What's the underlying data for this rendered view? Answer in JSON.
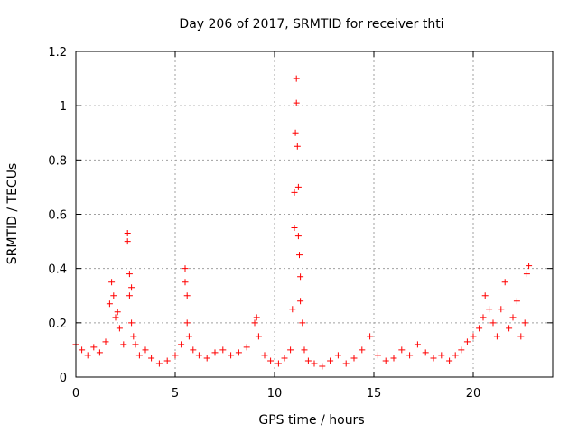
{
  "chart_data": {
    "type": "scatter",
    "title": "Day 206 of 2017, SRMTID for receiver thti",
    "xlabel": "GPS time / hours",
    "ylabel": "SRMTID / TECUs",
    "xlim": [
      0,
      24
    ],
    "ylim": [
      0,
      1.2
    ],
    "grid": true,
    "marker": "+",
    "color": "#ff0000",
    "x_ticks": [
      0,
      5,
      10,
      15,
      20
    ],
    "x_tick_labels": [
      "0",
      "5",
      "10",
      "15",
      "20"
    ],
    "y_ticks": [
      0,
      0.2,
      0.4,
      0.6,
      0.8,
      1.0,
      1.2
    ],
    "y_tick_labels": [
      "0",
      "0.2",
      "0.4",
      "0.6",
      "0.8",
      "1",
      "1.2"
    ],
    "series": [
      {
        "name": "SRMTID",
        "x": [
          0.0,
          0.3,
          0.6,
          0.9,
          1.2,
          1.5,
          1.7,
          1.8,
          1.9,
          2.0,
          2.1,
          2.2,
          2.4,
          2.6,
          2.6,
          2.7,
          2.7,
          2.8,
          2.8,
          2.9,
          3.0,
          3.2,
          3.5,
          3.8,
          4.2,
          4.6,
          5.0,
          5.3,
          5.5,
          5.5,
          5.6,
          5.6,
          5.7,
          5.9,
          6.2,
          6.6,
          7.0,
          7.4,
          7.8,
          8.2,
          8.6,
          9.0,
          9.1,
          9.2,
          9.5,
          9.8,
          10.2,
          10.5,
          10.8,
          10.9,
          11.0,
          11.0,
          11.05,
          11.1,
          11.1,
          11.15,
          11.2,
          11.2,
          11.25,
          11.3,
          11.3,
          11.4,
          11.5,
          11.7,
          12.0,
          12.4,
          12.8,
          13.2,
          13.6,
          14.0,
          14.4,
          14.8,
          15.2,
          15.6,
          16.0,
          16.4,
          16.8,
          17.2,
          17.6,
          18.0,
          18.4,
          18.8,
          19.1,
          19.4,
          19.7,
          20.0,
          20.3,
          20.5,
          20.6,
          20.8,
          21.0,
          21.2,
          21.4,
          21.6,
          21.8,
          22.0,
          22.2,
          22.4,
          22.6,
          22.7,
          22.8
        ],
        "y": [
          0.12,
          0.1,
          0.08,
          0.11,
          0.09,
          0.13,
          0.27,
          0.35,
          0.3,
          0.22,
          0.24,
          0.18,
          0.12,
          0.5,
          0.53,
          0.38,
          0.3,
          0.33,
          0.2,
          0.15,
          0.12,
          0.08,
          0.1,
          0.07,
          0.05,
          0.06,
          0.08,
          0.12,
          0.35,
          0.4,
          0.3,
          0.2,
          0.15,
          0.1,
          0.08,
          0.07,
          0.09,
          0.1,
          0.08,
          0.09,
          0.11,
          0.2,
          0.22,
          0.15,
          0.08,
          0.06,
          0.05,
          0.07,
          0.1,
          0.25,
          0.55,
          0.68,
          0.9,
          1.1,
          1.01,
          0.85,
          0.7,
          0.52,
          0.45,
          0.37,
          0.28,
          0.2,
          0.1,
          0.06,
          0.05,
          0.04,
          0.06,
          0.08,
          0.05,
          0.07,
          0.1,
          0.15,
          0.08,
          0.06,
          0.07,
          0.1,
          0.08,
          0.12,
          0.09,
          0.07,
          0.08,
          0.06,
          0.08,
          0.1,
          0.13,
          0.15,
          0.18,
          0.22,
          0.3,
          0.25,
          0.2,
          0.15,
          0.25,
          0.35,
          0.18,
          0.22,
          0.28,
          0.15,
          0.2,
          0.38,
          0.41
        ]
      }
    ]
  }
}
